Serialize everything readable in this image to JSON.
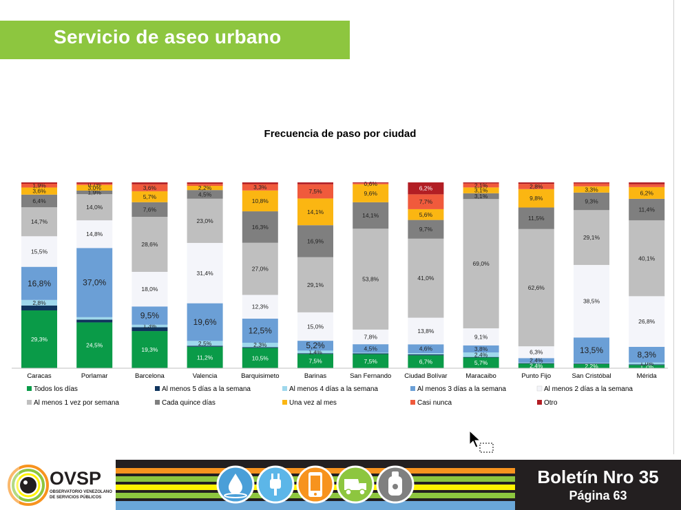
{
  "page": {
    "title": "Servicio de aseo urbano"
  },
  "footer": {
    "logo_name": "OVSP",
    "logo_subtitle_1": "OBSERVATORIO VENEZOLANO",
    "logo_subtitle_2": "DE SERVICIOS PÚBLICOS",
    "bulletin": "Boletín Nro 35",
    "page": "Página 63",
    "stripe_colors": [
      "#f7931e",
      "#8dc63f",
      "#fff200",
      "#8dc63f",
      "#6aa7d8"
    ],
    "icons": [
      "water-drop-icon",
      "power-plug-icon",
      "phone-icon",
      "garbage-truck-icon",
      "gas-cylinder-icon"
    ],
    "icon_colors": [
      "#4a9fd8",
      "#5cb6e8",
      "#f7931e",
      "#8dc63f",
      "#808080"
    ]
  },
  "chart_data": {
    "type": "bar",
    "stacked": true,
    "normalized": true,
    "title": "Frecuencia de paso por ciudad",
    "categories": [
      "Caracas",
      "Porlamar",
      "Barcelona",
      "Valencia",
      "Barquisimeto",
      "Barinas",
      "San Fernando",
      "Ciudad Bolívar",
      "Maracaibo",
      "Punto Fijo",
      "San Cristóbal",
      "Mérida"
    ],
    "legend_position": "bottom",
    "grid": false,
    "series": [
      {
        "name": "Todos los días",
        "color": "#0a9b48",
        "values": [
          29.3,
          24.5,
          19.3,
          11.2,
          10.5,
          7.5,
          7.5,
          6.7,
          5.7,
          2.4,
          2.2,
          1.7
        ],
        "labels": [
          "29,3%",
          "24,5%",
          "19,3%",
          "11,2%",
          "10,5%",
          "7,5%",
          "7,5%",
          "6,7%",
          "5,7%",
          "2,4%",
          "2,2%",
          "1,7%"
        ]
      },
      {
        "name": "Al menos 5 días a la semana",
        "color": "#10355e",
        "values": [
          2.5,
          1.5,
          2.0,
          0.5,
          0.4,
          0.4,
          0.4,
          0.5,
          0.3,
          0.3,
          0.3,
          0.3
        ],
        "labels": [
          "",
          "",
          "",
          "",
          "",
          "",
          "",
          "",
          "",
          "",
          "",
          ""
        ]
      },
      {
        "name": "Al menos 4 días a la semana",
        "color": "#9fd8ec",
        "values": [
          2.8,
          1.3,
          1.3,
          2.5,
          2.3,
          1.4,
          0.4,
          0.6,
          2.4,
          0.3,
          0.3,
          1.0
        ],
        "labels": [
          "2,8%",
          "",
          "1,3%",
          "2,5%",
          "2,3%",
          "1,4%",
          "",
          "",
          "2,4%",
          "",
          "",
          "1,0%"
        ]
      },
      {
        "name": "Al menos 3 días a la semana",
        "color": "#6b9fd6",
        "values": [
          16.8,
          37.0,
          9.5,
          19.6,
          12.5,
          5.2,
          4.5,
          4.6,
          3.8,
          2.4,
          13.5,
          8.3
        ],
        "labels": [
          "16,8%",
          "37,0%",
          "9,5%",
          "19,6%",
          "12,5%",
          "5,2%",
          "4,5%",
          "4,6%",
          "3,8%",
          "2,4%",
          "13,5%",
          "8,3%"
        ]
      },
      {
        "name": "Al menos 2 días a la semana",
        "color": "#f4f5fa",
        "values": [
          15.5,
          14.8,
          18.0,
          31.4,
          12.3,
          15.0,
          7.8,
          13.8,
          9.1,
          6.3,
          38.5,
          26.8
        ],
        "labels": [
          "15,5%",
          "14,8%",
          "18,0%",
          "31,4%",
          "12,3%",
          "15,0%",
          "7,8%",
          "13,8%",
          "9,1%",
          "6,3%",
          "38,5%",
          "26,8%"
        ]
      },
      {
        "name": "Al menos 1 vez por semana",
        "color": "#bfbfbf",
        "values": [
          14.7,
          14.0,
          28.6,
          23.0,
          27.0,
          29.1,
          53.8,
          41.0,
          69.0,
          62.6,
          29.1,
          40.1
        ],
        "labels": [
          "14,7%",
          "14,0%",
          "28,6%",
          "23,0%",
          "27,0%",
          "29,1%",
          "53,8%",
          "41,0%",
          "69,0%",
          "62,6%",
          "29,1%",
          "40,1%"
        ]
      },
      {
        "name": "Cada quince días",
        "color": "#7f7f7f",
        "values": [
          6.4,
          1.9,
          7.6,
          4.5,
          16.3,
          16.9,
          14.1,
          9.7,
          3.1,
          11.5,
          9.3,
          11.4
        ],
        "labels": [
          "6,4%",
          "1,9%",
          "7,6%",
          "4,5%",
          "16,3%",
          "16,9%",
          "14,1%",
          "9,7%",
          "3,1%",
          "11,5%",
          "9,3%",
          "11,4%"
        ]
      },
      {
        "name": "Una vez al mes",
        "color": "#fbb612",
        "values": [
          3.6,
          3.0,
          5.7,
          2.2,
          10.8,
          14.1,
          9.6,
          5.6,
          3.1,
          9.8,
          3.3,
          6.2
        ],
        "labels": [
          "3,6%",
          "3,0%",
          "5,7%",
          "2,2%",
          "10,8%",
          "14,1%",
          "9,6%",
          "5,6%",
          "3,1%",
          "9,8%",
          "3,3%",
          "6,2%"
        ]
      },
      {
        "name": "Casi nunca",
        "color": "#f05a3c",
        "values": [
          1.9,
          0.7,
          3.6,
          1.0,
          3.3,
          7.5,
          0.6,
          7.7,
          2.1,
          2.8,
          1.5,
          1.5
        ],
        "labels": [
          "1,9%",
          "0,7%",
          "3,6%",
          "",
          "3,3%",
          "7,5%",
          "0,6%",
          "7,7%",
          "2,1%",
          "2,8%",
          "",
          ""
        ]
      },
      {
        "name": "Otro",
        "color": "#b21e24",
        "values": [
          0.7,
          0.7,
          1.0,
          0.8,
          0.9,
          1.0,
          0.4,
          6.2,
          0.6,
          0.8,
          0.6,
          1.0
        ],
        "labels": [
          "",
          "",
          "",
          "",
          "",
          "",
          "",
          "6,2%",
          "",
          "",
          "",
          ""
        ]
      }
    ]
  }
}
